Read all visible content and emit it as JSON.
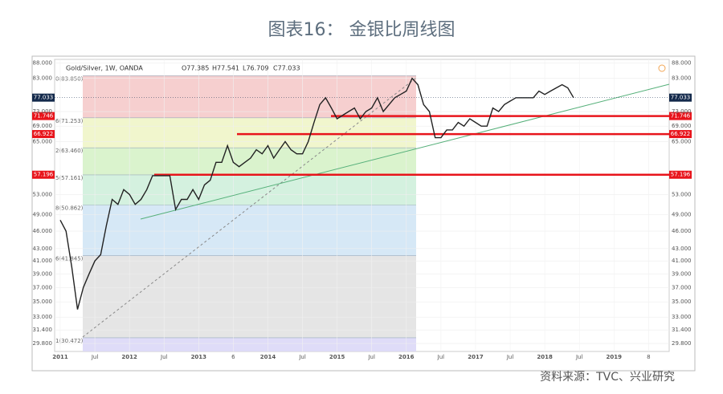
{
  "chart_data": {
    "type": "line",
    "title": "图表16： 金银比周线图",
    "header": "Gold/Silver, 1W, OANDA",
    "ohlc": [
      "O77.385",
      "H77.541",
      "L76.709",
      "C77.033"
    ],
    "source": "资料来源：TVC、兴业研究",
    "log_scale": true,
    "categories": [
      "2011",
      null,
      null,
      null,
      null,
      null,
      "Jul",
      null,
      null,
      null,
      null,
      null,
      "2012",
      null,
      null,
      null,
      null,
      null,
      "Jul",
      null,
      null,
      null,
      null,
      null,
      "2013",
      null,
      null,
      null,
      null,
      null,
      "6",
      null,
      null,
      null,
      null,
      null,
      "2014",
      null,
      null,
      null,
      null,
      null,
      "Jul",
      null,
      null,
      null,
      null,
      null,
      "2015",
      null,
      null,
      null,
      null,
      null,
      "Jul",
      null,
      null,
      null,
      null,
      null,
      "2016",
      null,
      null,
      null,
      null,
      null,
      "Jul",
      null,
      null,
      null,
      null,
      null,
      "2017",
      null,
      null,
      null,
      null,
      null,
      "Jul",
      null,
      null,
      null,
      null,
      null,
      "2018",
      null,
      null,
      null,
      null,
      null,
      "Jul",
      null,
      null,
      null,
      null,
      null,
      "2019",
      null,
      null,
      null,
      null,
      null,
      "8"
    ],
    "series": [
      {
        "name": "Gold/Silver",
        "color": "#222222",
        "values": [
          48,
          46,
          40,
          34,
          37,
          39,
          41,
          42,
          47,
          52,
          51,
          54,
          53,
          51,
          52,
          54,
          57,
          57,
          57,
          57,
          50,
          52,
          52,
          54,
          52,
          55,
          56,
          60,
          60,
          64,
          60,
          59,
          60,
          61,
          63,
          62,
          64,
          61,
          63,
          65,
          63,
          62,
          62,
          65,
          70,
          75,
          77,
          74,
          71,
          72,
          73,
          74,
          71,
          73,
          74,
          77,
          73,
          75,
          77,
          78,
          79,
          83,
          81,
          75,
          73,
          66,
          66,
          68,
          68,
          70,
          69,
          71,
          70,
          69,
          69,
          74,
          73,
          75,
          76,
          77,
          77,
          77,
          77,
          79,
          78,
          79,
          80,
          81,
          80,
          77,
          null,
          null,
          null,
          null,
          null,
          null,
          null,
          null,
          null,
          null,
          null,
          null,
          null
        ]
      }
    ],
    "ylim": [
      28.9,
      89.3
    ],
    "yticks": [
      {
        "value": 88,
        "label": "88.000"
      },
      {
        "value": 83,
        "label": "83.000"
      },
      {
        "value": 73,
        "label": "73.000"
      },
      {
        "value": 69,
        "label": "69.000"
      },
      {
        "value": 65,
        "label": "65.000"
      },
      {
        "value": 53,
        "label": "53.000"
      },
      {
        "value": 49,
        "label": "49.000"
      },
      {
        "value": 46,
        "label": "46.000"
      },
      {
        "value": 43,
        "label": "43.000"
      },
      {
        "value": 41,
        "label": "41.000"
      },
      {
        "value": 39,
        "label": "39.000"
      },
      {
        "value": 37,
        "label": "37.000"
      },
      {
        "value": 35,
        "label": "35.000"
      },
      {
        "value": 33,
        "label": "33.000"
      },
      {
        "value": 31.4,
        "label": "31.400"
      },
      {
        "value": 29.8,
        "label": "29.800"
      }
    ],
    "grid": true,
    "current_price": 77.033,
    "fib_levels": [
      {
        "value": 83.85,
        "label": "0(83.850)",
        "color": "#f4c7c7"
      },
      {
        "value": 71.253,
        "label": "6(71.253)",
        "color": "#eef4c4"
      },
      {
        "value": 63.46,
        "label": "2(63.460)",
        "color": "#d3f1c4"
      },
      {
        "value": 57.161,
        "label": "5(57.161)",
        "color": "#cdeed9"
      },
      {
        "value": 50.862,
        "label": "8(50.862)",
        "color": "#cfe4f4"
      },
      {
        "value": 41.845,
        "label": "6(41.845)",
        "color": "#e0e0e0"
      },
      {
        "value": 30.472,
        "label": "1(30.472)",
        "color": "#d9d6f7"
      }
    ],
    "levels": [
      {
        "value": 71.746,
        "label": "71.746"
      },
      {
        "value": 66.922,
        "label": "66.922"
      },
      {
        "value": 57.196,
        "label": "57.196"
      }
    ],
    "level_color": "#e8141b"
  }
}
